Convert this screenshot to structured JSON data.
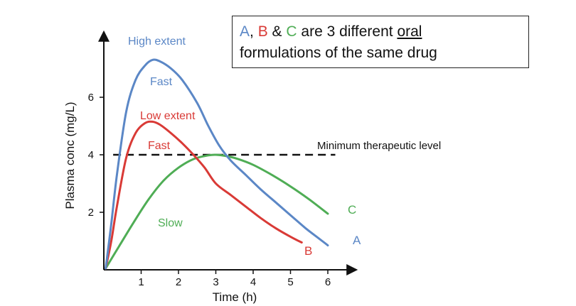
{
  "note": {
    "a": "A",
    "comma": ", ",
    "b": "B",
    "amp": " & ",
    "c": "C",
    "text1": " are 3 different ",
    "oral": "oral",
    "line2": "formulations of the same drug"
  },
  "colors": {
    "A": "#5b87c6",
    "B": "#d93a36",
    "C": "#4fad55",
    "reference": "#111111"
  },
  "chart_data": {
    "type": "line",
    "xlabel": "Time (h)",
    "ylabel": "Plasma conc (mg/L)",
    "xlim": [
      0,
      6.2
    ],
    "ylim": [
      0,
      7.6
    ],
    "xticks": [
      "1",
      "2",
      "3",
      "4",
      "5",
      "6"
    ],
    "yticks": [
      "2",
      "4",
      "6"
    ],
    "grid": false,
    "series": [
      {
        "name": "A",
        "color": "#5b87c6",
        "x": [
          0.05,
          0.2,
          0.35,
          0.6,
          0.85,
          1.1,
          1.3,
          1.5,
          1.8,
          2.1,
          2.5,
          2.8,
          3.1,
          3.4,
          3.8,
          4.2,
          4.6,
          5.0,
          5.4,
          5.8,
          6.0
        ],
        "y": [
          0.05,
          1.6,
          3.3,
          5.5,
          6.6,
          7.1,
          7.3,
          7.25,
          7.0,
          6.6,
          5.8,
          5.0,
          4.3,
          3.8,
          3.3,
          2.8,
          2.35,
          1.9,
          1.45,
          1.05,
          0.85
        ]
      },
      {
        "name": "B",
        "color": "#d93a36",
        "x": [
          0.05,
          0.2,
          0.35,
          0.6,
          0.85,
          1.1,
          1.3,
          1.5,
          1.8,
          2.1,
          2.4,
          2.7,
          3.0,
          3.4,
          3.8,
          4.2,
          4.6,
          5.0,
          5.3
        ],
        "y": [
          0.05,
          1.0,
          2.2,
          3.9,
          4.75,
          5.1,
          5.15,
          5.05,
          4.75,
          4.4,
          4.0,
          3.55,
          3.0,
          2.6,
          2.2,
          1.8,
          1.45,
          1.15,
          0.95
        ]
      },
      {
        "name": "C",
        "color": "#4fad55",
        "x": [
          0.05,
          0.4,
          0.8,
          1.2,
          1.6,
          2.0,
          2.4,
          2.8,
          3.0,
          3.3,
          3.6,
          4.0,
          4.5,
          5.0,
          5.5,
          6.0
        ],
        "y": [
          0.05,
          0.8,
          1.65,
          2.45,
          3.1,
          3.55,
          3.85,
          3.98,
          4.0,
          3.95,
          3.85,
          3.65,
          3.3,
          2.9,
          2.45,
          1.95
        ]
      }
    ],
    "reference_line": {
      "y": 4,
      "label": "Minimum therapeutic level"
    },
    "annotations": [
      {
        "text": "High extent",
        "series": "A"
      },
      {
        "text": "Fast",
        "series": "A"
      },
      {
        "text": "Low extent",
        "series": "B"
      },
      {
        "text": "Fast",
        "series": "B"
      },
      {
        "text": "Slow",
        "series": "C"
      },
      {
        "text": "A",
        "series": "A"
      },
      {
        "text": "B",
        "series": "B"
      },
      {
        "text": "C",
        "series": "C"
      }
    ]
  }
}
